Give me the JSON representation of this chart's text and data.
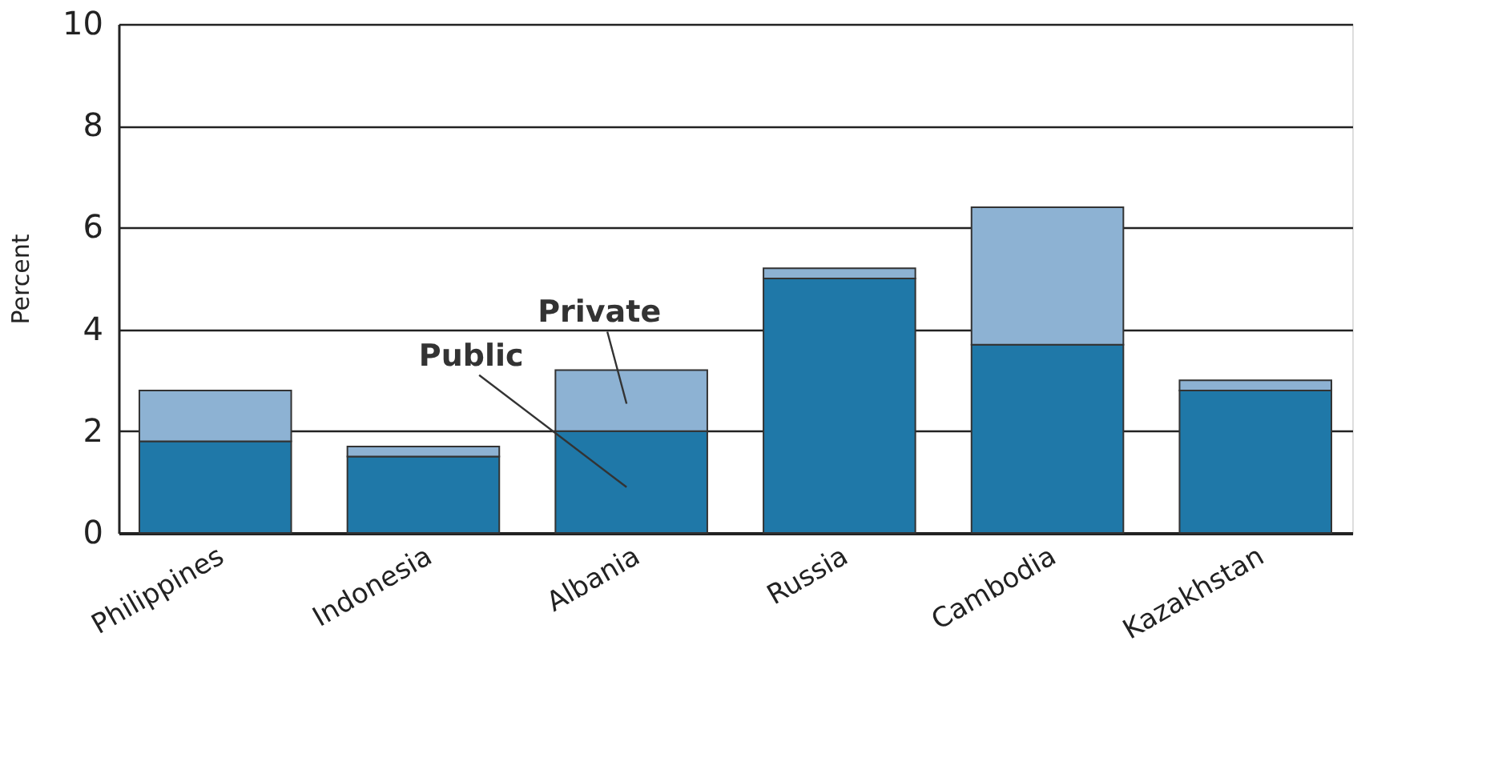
{
  "chart_data": {
    "type": "bar",
    "stacked": true,
    "ylabel": "Percent",
    "categories": [
      "Philippines",
      "Indonesia",
      "Albania",
      "Russia",
      "Cambodia",
      "Kazakhstan"
    ],
    "series": [
      {
        "name": "Public",
        "color": "#1f78a8",
        "values": [
          1.8,
          1.5,
          2.0,
          5.0,
          3.7,
          2.8
        ]
      },
      {
        "name": "Private",
        "color": "#8db2d3",
        "values": [
          1.0,
          0.2,
          1.2,
          0.2,
          2.7,
          0.2
        ]
      }
    ],
    "ylim": [
      0,
      10
    ],
    "yticks": [
      0,
      2,
      4,
      6,
      8,
      10
    ],
    "grid": "y",
    "legend": false
  }
}
